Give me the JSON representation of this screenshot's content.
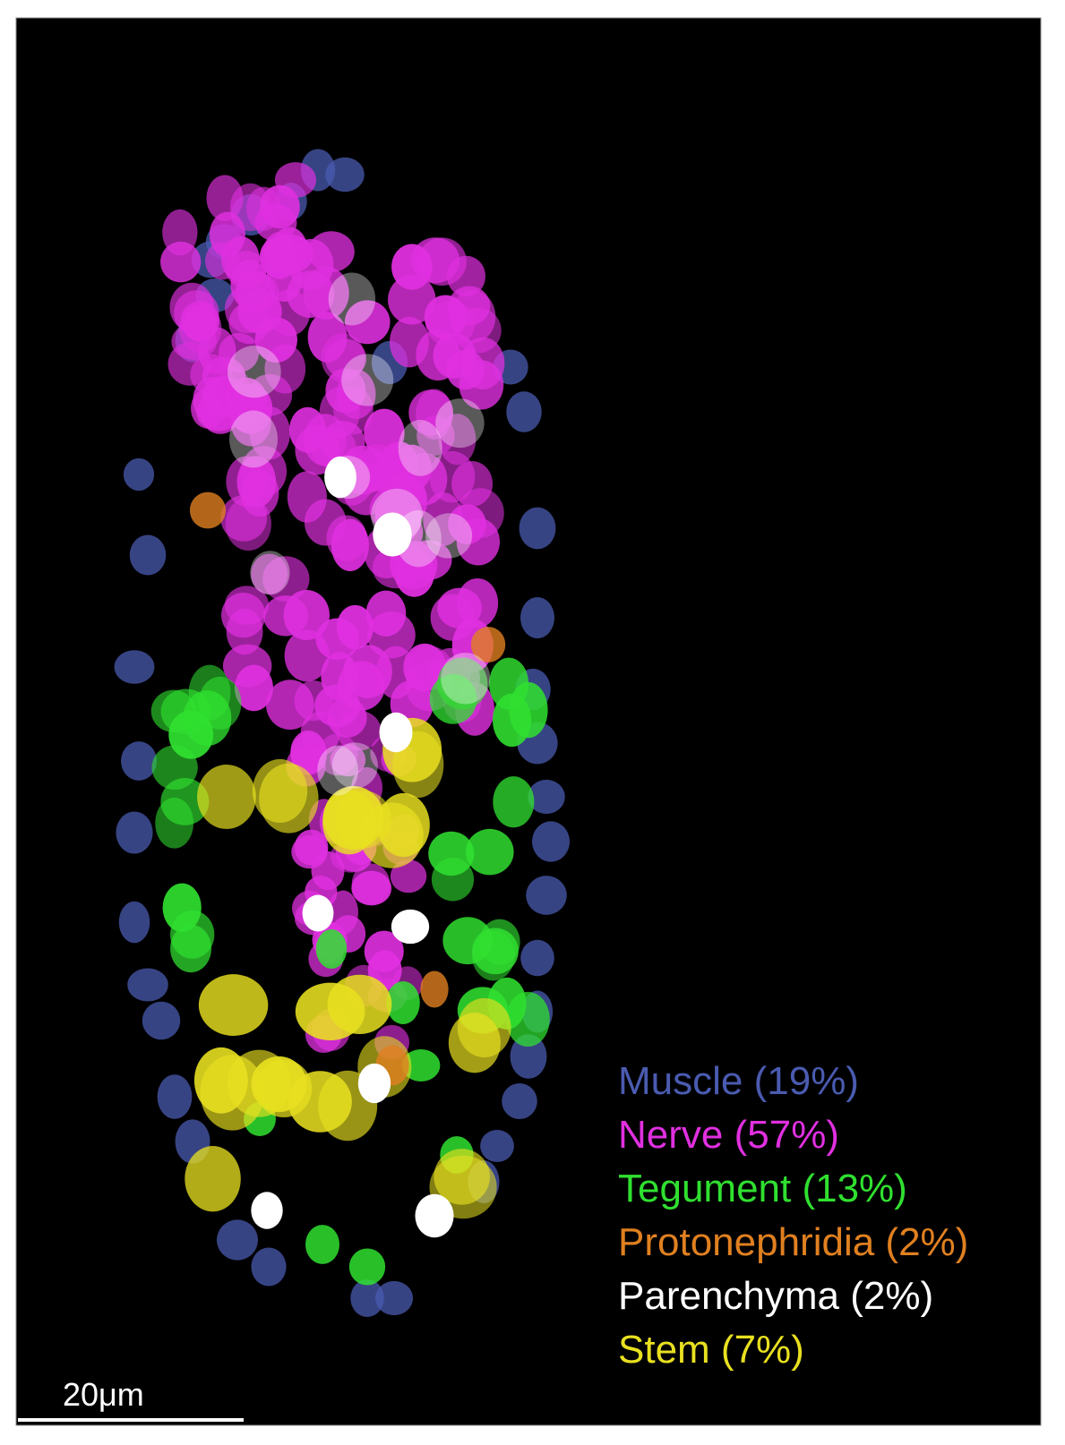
{
  "legend": [
    {
      "label": "Muscle (19%)",
      "color": "#4a5bb0"
    },
    {
      "label": "Nerve (57%)",
      "color": "#e030e0"
    },
    {
      "label": "Tegument (13%)",
      "color": "#30e030"
    },
    {
      "label": "Protonephridia (2%)",
      "color": "#e08020"
    },
    {
      "label": "Parenchyma (2%)",
      "color": "#ffffff"
    },
    {
      "label": "Stem (7%)",
      "color": "#e8e020"
    }
  ],
  "scale_bar": {
    "label": "20μm"
  }
}
